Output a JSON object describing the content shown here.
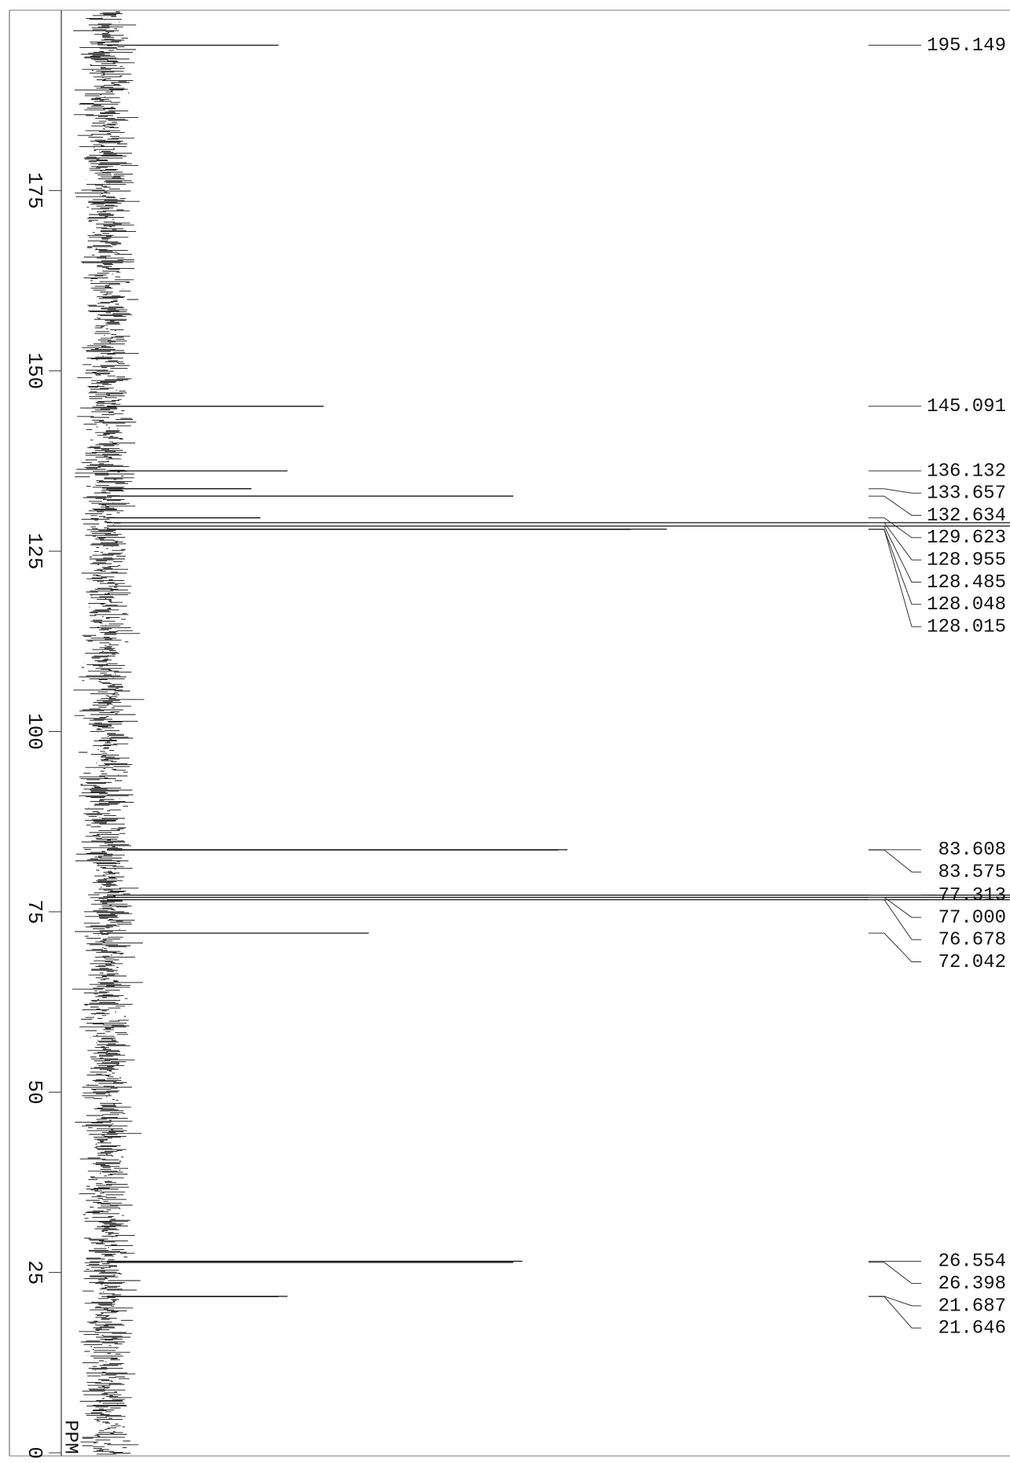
{
  "chart_data": {
    "type": "spectrum",
    "xlabel": "PPM",
    "xlim": [
      0,
      200
    ],
    "xticks": [
      0,
      25,
      50,
      75,
      100,
      125,
      150,
      175
    ],
    "ylim": [
      0,
      100
    ],
    "color": "#111111",
    "x": [
      195.149,
      145.091,
      136.132,
      133.657,
      132.634,
      129.623,
      128.955,
      128.485,
      128.048,
      128.015,
      83.608,
      83.575,
      77.313,
      77.0,
      76.678,
      72.042,
      26.554,
      26.398,
      21.687,
      21.646
    ],
    "values": [
      19,
      24,
      20,
      16,
      45,
      17,
      100,
      100,
      62,
      58,
      51,
      50,
      100,
      100,
      100,
      29,
      46,
      45,
      20,
      19
    ],
    "value_labels": [
      "195.149",
      "145.091",
      "136.132",
      "133.657",
      "132.634",
      "129.623",
      "128.955",
      "128.485",
      "128.048",
      "128.015",
      "83.608",
      "83.575",
      "77.313",
      "77.000",
      "76.678",
      "72.042",
      "26.554",
      "26.398",
      "21.687",
      "21.646"
    ]
  }
}
